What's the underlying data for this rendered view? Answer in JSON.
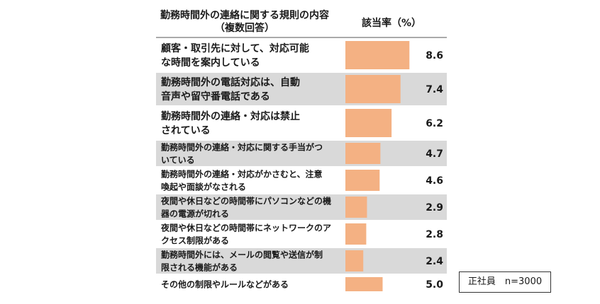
{
  "chart_data": {
    "type": "bar",
    "orientation": "horizontal",
    "header": {
      "category_line1": "勤務時間外の連絡に関する規則の内容",
      "category_line2": "（複数回答）",
      "value": "該当率（%）"
    },
    "categories": [
      [
        "顧客・取引先に対して、対応可能",
        "な時間を案内している"
      ],
      [
        "勤務時間外の電話対応は、自動",
        "音声や留守番電話である"
      ],
      [
        "勤務時間外の連絡・対応は禁止",
        "されている"
      ],
      [
        "勤務時間外の連絡・対応に関する手当がつ",
        "いている"
      ],
      [
        "勤務時間外の連絡・対応がかさむと、注意",
        "喚起や面談がなされる"
      ],
      [
        "夜間や休日などの時間帯にパソコンなどの機",
        "器の電源が切れる"
      ],
      [
        "夜間や休日などの時間帯にネットワークのア",
        "クセス制限がある"
      ],
      [
        "勤務時間外には、メールの閲覧や送信が制",
        "限される機能がある"
      ],
      [
        "その他の制限やルールなどがある"
      ]
    ],
    "values": [
      8.6,
      7.4,
      6.2,
      4.7,
      4.6,
      2.9,
      2.8,
      2.4,
      5.0
    ],
    "value_labels": [
      "8.6",
      "7.4",
      "6.2",
      "4.7",
      "4.6",
      "2.9",
      "2.8",
      "2.4",
      "5.0"
    ],
    "bar_color": "#f4b183",
    "stripe_color": "#d9d9d9",
    "note": "正社員　n=3000"
  }
}
